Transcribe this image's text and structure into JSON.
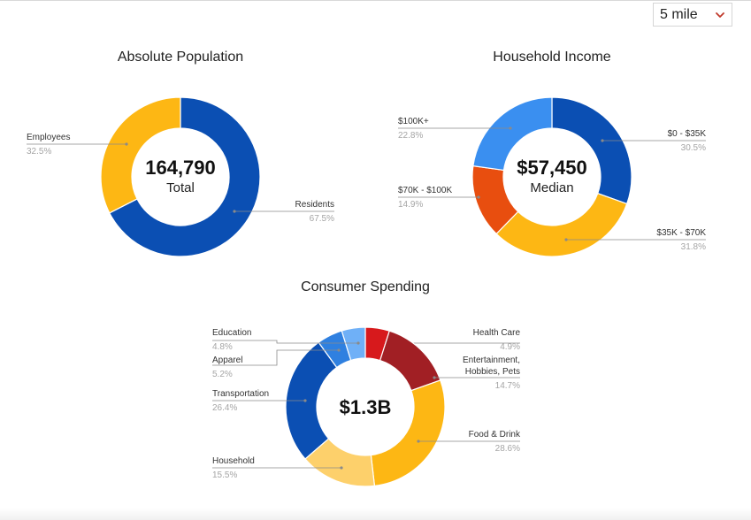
{
  "controls": {
    "radius": {
      "value": "5 mile",
      "chevron_color": "#c0392b"
    }
  },
  "chart_data": [
    {
      "type": "pie",
      "title": "Absolute Population",
      "center_value": "164,790",
      "center_label": "Total",
      "slices": [
        {
          "label": "Residents",
          "percent_label": "67.5%",
          "value": 67.5,
          "color": "#0b4fb3"
        },
        {
          "label": "Employees",
          "percent_label": "32.5%",
          "value": 32.5,
          "color": "#fdb714"
        }
      ]
    },
    {
      "type": "pie",
      "title": "Household Income",
      "center_value": "$57,450",
      "center_label": "Median",
      "slices": [
        {
          "label": "$0 - $35K",
          "percent_label": "30.5%",
          "value": 30.5,
          "color": "#0b4fb3"
        },
        {
          "label": "$35K - $70K",
          "percent_label": "31.8%",
          "value": 31.8,
          "color": "#fdb714"
        },
        {
          "label": "$70K - $100K",
          "percent_label": "14.9%",
          "value": 14.9,
          "color": "#e84e0f"
        },
        {
          "label": "$100K+",
          "percent_label": "22.8%",
          "value": 22.8,
          "color": "#3a8ff0"
        }
      ]
    },
    {
      "type": "pie",
      "title": "Consumer Spending",
      "center_value": "$1.3B",
      "center_label": "",
      "slices": [
        {
          "label": "Health Care",
          "percent_label": "4.9%",
          "value": 4.9,
          "color": "#d7191c"
        },
        {
          "label": "Entertainment, Hobbies, Pets",
          "label_lines": [
            "Entertainment,",
            "Hobbies, Pets"
          ],
          "percent_label": "14.7%",
          "value": 14.7,
          "color": "#a11f24"
        },
        {
          "label": "Food & Drink",
          "percent_label": "28.6%",
          "value": 28.6,
          "color": "#fdb714"
        },
        {
          "label": "Household",
          "percent_label": "15.5%",
          "value": 15.5,
          "color": "#fdd06b"
        },
        {
          "label": "Transportation",
          "percent_label": "26.4%",
          "value": 26.4,
          "color": "#0b4fb3"
        },
        {
          "label": "Apparel",
          "percent_label": "5.2%",
          "value": 5.2,
          "color": "#2f80e0"
        },
        {
          "label": "Education",
          "percent_label": "4.8%",
          "value": 4.8,
          "color": "#6fb0f7"
        }
      ]
    }
  ]
}
